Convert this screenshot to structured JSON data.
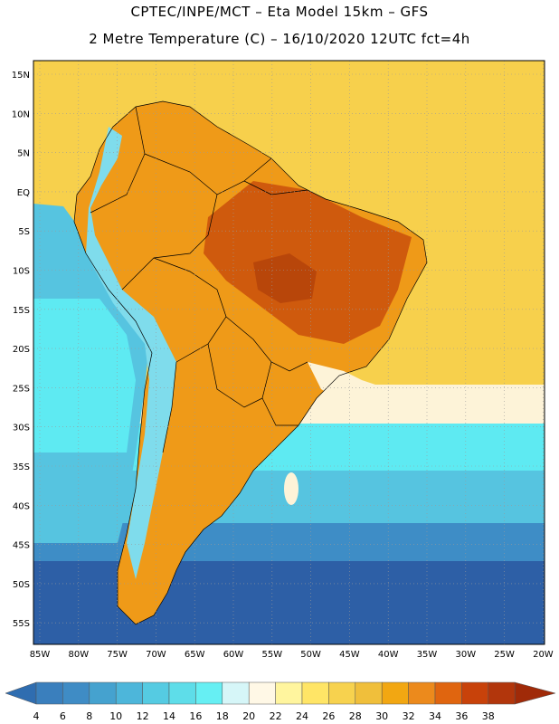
{
  "title": {
    "line1": "CPTEC/INPE/MCT –  Eta Model 15km – GFS",
    "line2": "2 Metre Temperature (C) – 16/10/2020 12UTC fct=4h"
  },
  "map": {
    "lat_labels": [
      "15N",
      "10N",
      "5N",
      "EQ",
      "5S",
      "10S",
      "15S",
      "20S",
      "25S",
      "30S",
      "35S",
      "40S",
      "45S",
      "50S",
      "55S"
    ],
    "lon_labels": [
      "85W",
      "80W",
      "75W",
      "70W",
      "65W",
      "60W",
      "55W",
      "50W",
      "45W",
      "40W",
      "35W",
      "30W",
      "25W",
      "20W"
    ]
  },
  "colorbar": {
    "labels": [
      "4",
      "6",
      "8",
      "10",
      "12",
      "14",
      "16",
      "18",
      "20",
      "22",
      "24",
      "26",
      "28",
      "30",
      "32",
      "34",
      "36",
      "38"
    ],
    "colors": [
      "#3a7fbd",
      "#3f8cc5",
      "#45a2cf",
      "#4db6da",
      "#55cbe2",
      "#5edde9",
      "#66eff3",
      "#d6f6f8",
      "#fff8e6",
      "#fff59e",
      "#ffe566",
      "#f7d24e",
      "#f0bf3b",
      "#f2a712",
      "#ec8a1c",
      "#e0650f",
      "#c8420a",
      "#b2360c"
    ],
    "low_color": "#2f6db0",
    "high_color": "#a02a08"
  },
  "palette": {
    "ocean_deep": "#2d5fa6",
    "ocean_mid": "#3e8dc6",
    "ocean_light": "#56c4e0",
    "ocean_cyan": "#5eeaf2",
    "coast_pale": "#fdf3d8",
    "north_atlantic": "#f7d04c",
    "land_warm": "#ef9a18",
    "land_hot": "#cf5a0d",
    "andes_cold": "#7fdcec"
  }
}
